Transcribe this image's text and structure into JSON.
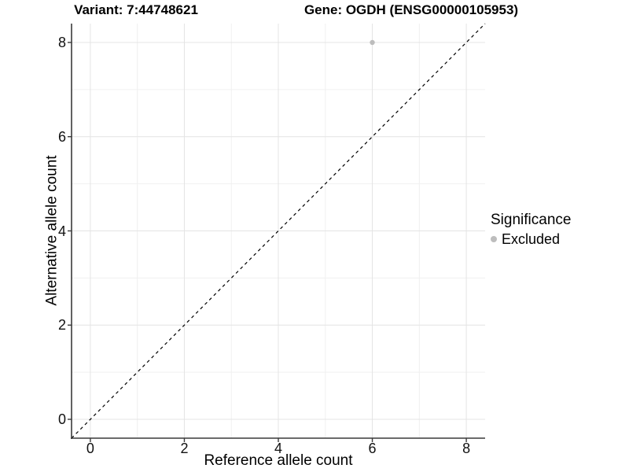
{
  "chart_data": {
    "type": "scatter",
    "titles": [
      "Variant: 7:44748621",
      "Gene: OGDH (ENSG00000105953)"
    ],
    "xlabel": "Reference allele count",
    "ylabel": "Alternative allele count",
    "xlim": [
      -0.4,
      8.4
    ],
    "ylim": [
      -0.4,
      8.4
    ],
    "x_ticks": [
      0,
      2,
      4,
      6,
      8
    ],
    "y_ticks": [
      0,
      2,
      4,
      6,
      8
    ],
    "minor_ticks": [
      1,
      3,
      5,
      7
    ],
    "grid": true,
    "grid_major_color": "#e4e4e4",
    "grid_minor_color": "#f0f0f0",
    "axis_line_color": "#3a3a3a",
    "reference_line": {
      "type": "identity",
      "style": "dashed",
      "color": "#000000"
    },
    "series": [
      {
        "name": "Excluded",
        "color": "#bdbdbd",
        "points": [
          {
            "x": 6,
            "y": 8
          }
        ]
      }
    ],
    "legend": {
      "title": "Significance",
      "position": "right",
      "items": [
        {
          "label": "Excluded",
          "color": "#bdbdbd"
        }
      ]
    }
  }
}
